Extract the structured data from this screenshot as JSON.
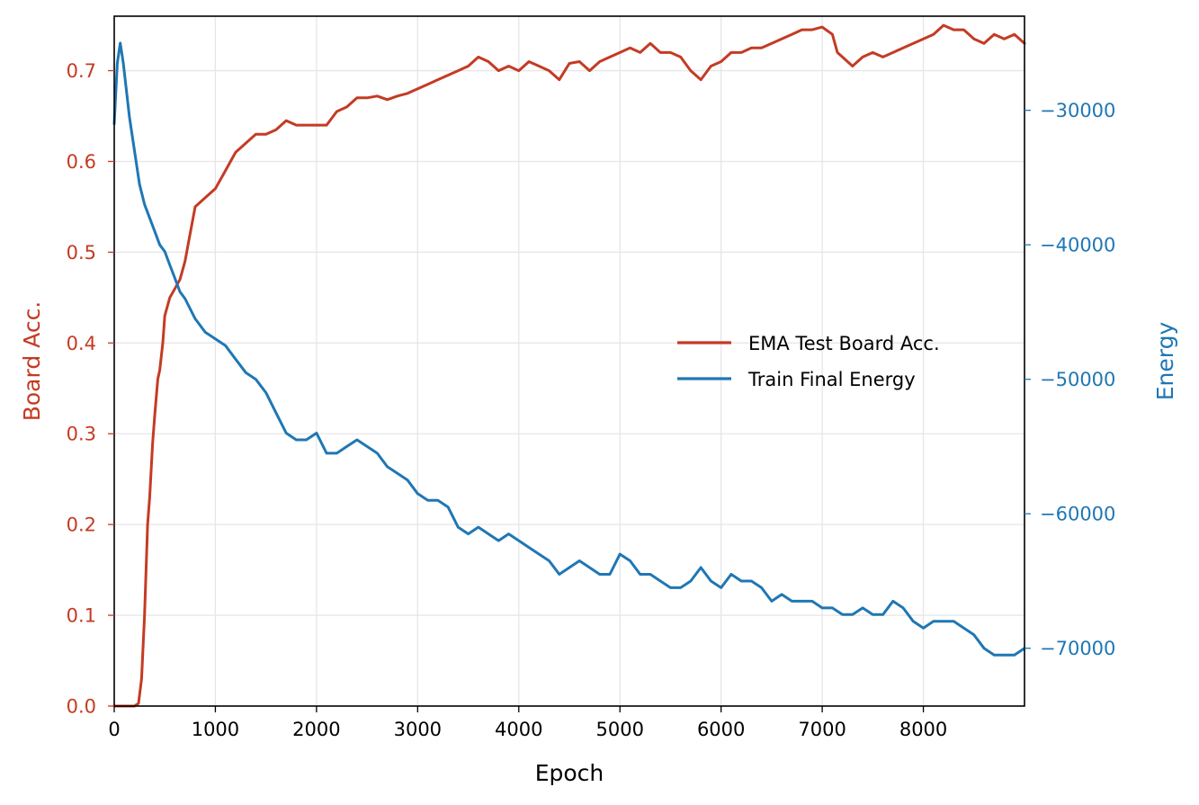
{
  "chart_data": {
    "type": "line",
    "title": "",
    "xlabel": "Epoch",
    "ylabel_left": "Board Acc.",
    "ylabel_right": "Energy",
    "xlim": [
      0,
      9000
    ],
    "ylim_left": [
      0,
      0.76
    ],
    "ylim_right": [
      -74300,
      -23000
    ],
    "xticks": [
      "0",
      "1000",
      "2000",
      "3000",
      "4000",
      "5000",
      "6000",
      "7000",
      "8000"
    ],
    "yticks_left": [
      "0.0",
      "0.1",
      "0.2",
      "0.3",
      "0.4",
      "0.5",
      "0.6",
      "0.7"
    ],
    "yticks_right": [
      "−30000",
      "−40000",
      "−50000",
      "−60000",
      "−70000"
    ],
    "grid": true,
    "legend": {
      "position": "center-right",
      "entries": [
        "EMA Test Board Acc.",
        "Train Final Energy"
      ]
    },
    "colors": {
      "accuracy": "#c43b24",
      "energy": "#1f77b4"
    },
    "series": [
      {
        "name": "EMA Test Board Acc.",
        "axis": "left",
        "x": [
          0,
          200,
          240,
          270,
          300,
          330,
          350,
          380,
          400,
          430,
          450,
          480,
          500,
          550,
          600,
          650,
          700,
          750,
          800,
          900,
          1000,
          1100,
          1200,
          1300,
          1400,
          1500,
          1600,
          1700,
          1800,
          1900,
          2000,
          2100,
          2200,
          2300,
          2400,
          2500,
          2600,
          2700,
          2800,
          2900,
          3000,
          3100,
          3200,
          3300,
          3400,
          3500,
          3600,
          3700,
          3800,
          3900,
          4000,
          4100,
          4200,
          4300,
          4400,
          4500,
          4600,
          4700,
          4800,
          4900,
          5000,
          5100,
          5200,
          5300,
          5400,
          5500,
          5600,
          5700,
          5800,
          5900,
          6000,
          6100,
          6200,
          6300,
          6400,
          6500,
          6600,
          6700,
          6800,
          6900,
          7000,
          7100,
          7150,
          7200,
          7300,
          7400,
          7500,
          7600,
          7700,
          7800,
          7900,
          8000,
          8100,
          8200,
          8300,
          8400,
          8500,
          8600,
          8700,
          8800,
          8900,
          9000
        ],
        "values": [
          0.0,
          0.0,
          0.003,
          0.03,
          0.1,
          0.2,
          0.23,
          0.29,
          0.32,
          0.36,
          0.37,
          0.4,
          0.43,
          0.45,
          0.46,
          0.47,
          0.49,
          0.52,
          0.55,
          0.56,
          0.57,
          0.59,
          0.61,
          0.62,
          0.63,
          0.63,
          0.635,
          0.645,
          0.64,
          0.64,
          0.64,
          0.64,
          0.655,
          0.66,
          0.67,
          0.67,
          0.672,
          0.668,
          0.672,
          0.675,
          0.68,
          0.685,
          0.69,
          0.695,
          0.7,
          0.705,
          0.715,
          0.71,
          0.7,
          0.705,
          0.7,
          0.71,
          0.705,
          0.7,
          0.69,
          0.708,
          0.71,
          0.7,
          0.71,
          0.715,
          0.72,
          0.725,
          0.72,
          0.73,
          0.72,
          0.72,
          0.715,
          0.7,
          0.69,
          0.705,
          0.71,
          0.72,
          0.72,
          0.725,
          0.725,
          0.73,
          0.735,
          0.74,
          0.745,
          0.745,
          0.748,
          0.74,
          0.72,
          0.715,
          0.705,
          0.715,
          0.72,
          0.715,
          0.72,
          0.725,
          0.73,
          0.735,
          0.74,
          0.75,
          0.745,
          0.745,
          0.735,
          0.73,
          0.74,
          0.735,
          0.74,
          0.73
        ]
      },
      {
        "name": "Train Final Energy",
        "axis": "right",
        "x": [
          0,
          30,
          60,
          90,
          120,
          150,
          200,
          250,
          300,
          350,
          400,
          450,
          500,
          550,
          600,
          650,
          700,
          800,
          900,
          1000,
          1100,
          1200,
          1300,
          1400,
          1500,
          1600,
          1700,
          1800,
          1900,
          2000,
          2100,
          2200,
          2300,
          2400,
          2500,
          2600,
          2700,
          2800,
          2900,
          3000,
          3100,
          3200,
          3300,
          3400,
          3500,
          3600,
          3700,
          3800,
          3900,
          4000,
          4100,
          4200,
          4300,
          4400,
          4500,
          4600,
          4700,
          4800,
          4900,
          5000,
          5100,
          5200,
          5300,
          5400,
          5500,
          5600,
          5700,
          5800,
          5900,
          6000,
          6100,
          6200,
          6300,
          6400,
          6500,
          6600,
          6700,
          6800,
          6900,
          7000,
          7100,
          7200,
          7300,
          7400,
          7500,
          7600,
          7700,
          7800,
          7900,
          8000,
          8100,
          8200,
          8300,
          8400,
          8500,
          8600,
          8700,
          8800,
          8900,
          9000
        ],
        "values": [
          -31000,
          -26500,
          -25000,
          -26500,
          -28500,
          -30500,
          -33000,
          -35500,
          -37000,
          -38000,
          -39000,
          -40000,
          -40500,
          -41500,
          -42500,
          -43500,
          -44000,
          -45500,
          -46500,
          -47000,
          -47500,
          -48500,
          -49500,
          -50000,
          -51000,
          -52500,
          -54000,
          -54500,
          -54500,
          -54000,
          -55500,
          -55500,
          -55000,
          -54500,
          -55000,
          -55500,
          -56500,
          -57000,
          -57500,
          -58500,
          -59000,
          -59000,
          -59500,
          -61000,
          -61500,
          -61000,
          -61500,
          -62000,
          -61500,
          -62000,
          -62500,
          -63000,
          -63500,
          -64500,
          -64000,
          -63500,
          -64000,
          -64500,
          -64500,
          -63000,
          -63500,
          -64500,
          -64500,
          -65000,
          -65500,
          -65500,
          -65000,
          -64000,
          -65000,
          -65500,
          -64500,
          -65000,
          -65000,
          -65500,
          -66500,
          -66000,
          -66500,
          -66500,
          -66500,
          -67000,
          -67000,
          -67500,
          -67500,
          -67000,
          -67500,
          -67500,
          -66500,
          -67000,
          -68000,
          -68500,
          -68000,
          -68000,
          -68000,
          -68500,
          -69000,
          -70000,
          -70500,
          -70500,
          -70500,
          -70000
        ]
      }
    ]
  }
}
